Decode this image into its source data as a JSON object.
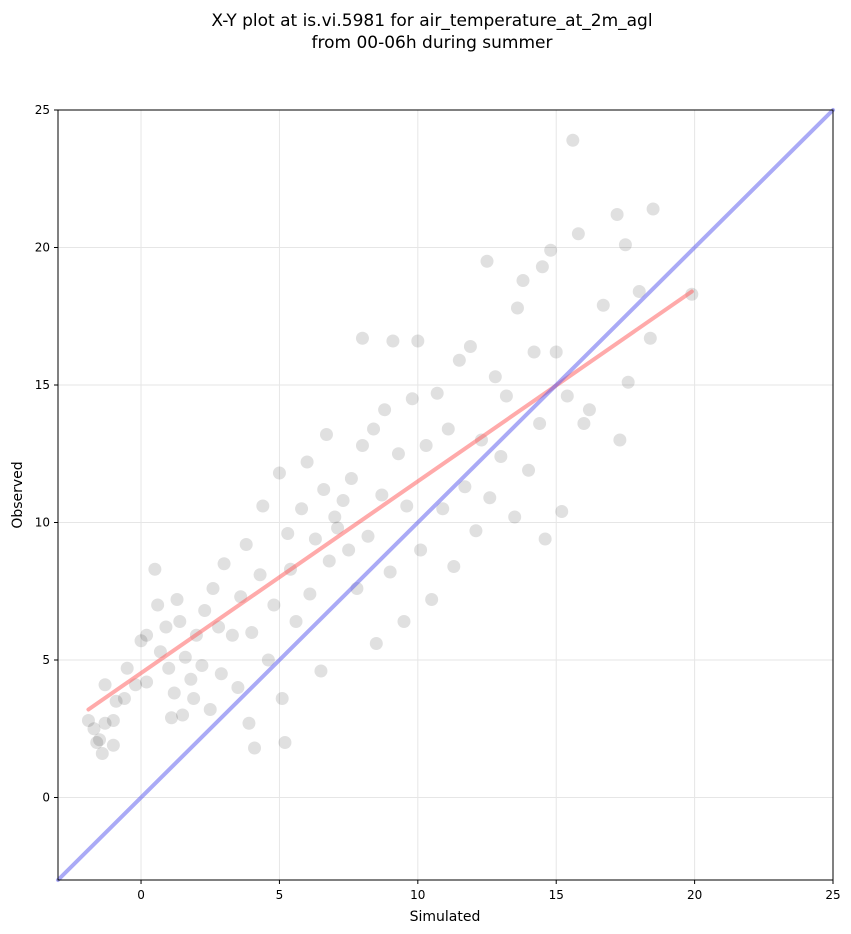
{
  "chart_data": {
    "type": "scatter",
    "title_lines": [
      "X-Y plot at is.vi.5981 for air_temperature_at_2m_agl",
      "from 00-06h during summer"
    ],
    "xlabel": "Simulated",
    "ylabel": "Observed",
    "xlim": [
      -3,
      25
    ],
    "ylim": [
      -3,
      25
    ],
    "xticks": [
      0,
      5,
      10,
      15,
      20,
      25
    ],
    "yticks": [
      0,
      5,
      10,
      15,
      20,
      25
    ],
    "grid": true,
    "point_color": "#000000",
    "point_alpha": 0.12,
    "series": [
      {
        "type": "scatter",
        "points": [
          [
            -1.9,
            2.8
          ],
          [
            -1.7,
            2.5
          ],
          [
            -1.5,
            2.1
          ],
          [
            -1.4,
            1.6
          ],
          [
            -1.6,
            2.0
          ],
          [
            -1.3,
            2.7
          ],
          [
            -1.3,
            4.1
          ],
          [
            -1.0,
            2.8
          ],
          [
            -1.0,
            1.9
          ],
          [
            -0.9,
            3.5
          ],
          [
            -0.6,
            3.6
          ],
          [
            -0.5,
            4.7
          ],
          [
            -0.2,
            4.1
          ],
          [
            0.0,
            5.7
          ],
          [
            0.2,
            5.9
          ],
          [
            0.2,
            4.2
          ],
          [
            0.5,
            8.3
          ],
          [
            0.6,
            7.0
          ],
          [
            0.7,
            5.3
          ],
          [
            0.9,
            6.2
          ],
          [
            1.0,
            4.7
          ],
          [
            1.1,
            2.9
          ],
          [
            1.2,
            3.8
          ],
          [
            1.3,
            7.2
          ],
          [
            1.4,
            6.4
          ],
          [
            1.5,
            3.0
          ],
          [
            1.6,
            5.1
          ],
          [
            1.8,
            4.3
          ],
          [
            1.9,
            3.6
          ],
          [
            2.0,
            5.9
          ],
          [
            2.2,
            4.8
          ],
          [
            2.3,
            6.8
          ],
          [
            2.5,
            3.2
          ],
          [
            2.6,
            7.6
          ],
          [
            2.8,
            6.2
          ],
          [
            2.9,
            4.5
          ],
          [
            3.0,
            8.5
          ],
          [
            3.3,
            5.9
          ],
          [
            3.5,
            4.0
          ],
          [
            3.6,
            7.3
          ],
          [
            3.8,
            9.2
          ],
          [
            3.9,
            2.7
          ],
          [
            4.0,
            6.0
          ],
          [
            4.1,
            1.8
          ],
          [
            4.3,
            8.1
          ],
          [
            4.4,
            10.6
          ],
          [
            4.6,
            5.0
          ],
          [
            4.8,
            7.0
          ],
          [
            5.0,
            11.8
          ],
          [
            5.1,
            3.6
          ],
          [
            5.2,
            2.0
          ],
          [
            5.3,
            9.6
          ],
          [
            5.4,
            8.3
          ],
          [
            5.6,
            6.4
          ],
          [
            5.8,
            10.5
          ],
          [
            6.0,
            12.2
          ],
          [
            6.1,
            7.4
          ],
          [
            6.3,
            9.4
          ],
          [
            6.5,
            4.6
          ],
          [
            6.6,
            11.2
          ],
          [
            6.7,
            13.2
          ],
          [
            6.8,
            8.6
          ],
          [
            7.0,
            10.2
          ],
          [
            7.1,
            9.8
          ],
          [
            7.3,
            10.8
          ],
          [
            7.5,
            9.0
          ],
          [
            7.6,
            11.6
          ],
          [
            7.8,
            7.6
          ],
          [
            8.0,
            12.8
          ],
          [
            8.0,
            16.7
          ],
          [
            8.2,
            9.5
          ],
          [
            8.4,
            13.4
          ],
          [
            8.5,
            5.6
          ],
          [
            8.7,
            11.0
          ],
          [
            8.8,
            14.1
          ],
          [
            9.0,
            8.2
          ],
          [
            9.1,
            16.6
          ],
          [
            9.3,
            12.5
          ],
          [
            9.5,
            6.4
          ],
          [
            9.6,
            10.6
          ],
          [
            9.8,
            14.5
          ],
          [
            10.0,
            16.6
          ],
          [
            10.1,
            9.0
          ],
          [
            10.3,
            12.8
          ],
          [
            10.5,
            7.2
          ],
          [
            10.7,
            14.7
          ],
          [
            10.9,
            10.5
          ],
          [
            11.1,
            13.4
          ],
          [
            11.3,
            8.4
          ],
          [
            11.5,
            15.9
          ],
          [
            11.7,
            11.3
          ],
          [
            11.9,
            16.4
          ],
          [
            12.1,
            9.7
          ],
          [
            12.3,
            13.0
          ],
          [
            12.5,
            19.5
          ],
          [
            12.6,
            10.9
          ],
          [
            12.8,
            15.3
          ],
          [
            13.0,
            12.4
          ],
          [
            13.2,
            14.6
          ],
          [
            13.5,
            10.2
          ],
          [
            13.6,
            17.8
          ],
          [
            13.8,
            18.8
          ],
          [
            14.0,
            11.9
          ],
          [
            14.2,
            16.2
          ],
          [
            14.4,
            13.6
          ],
          [
            14.5,
            19.3
          ],
          [
            14.6,
            9.4
          ],
          [
            14.8,
            19.9
          ],
          [
            15.0,
            16.2
          ],
          [
            15.2,
            10.4
          ],
          [
            15.4,
            14.6
          ],
          [
            15.6,
            23.9
          ],
          [
            15.8,
            20.5
          ],
          [
            16.0,
            13.6
          ],
          [
            16.2,
            14.1
          ],
          [
            16.7,
            17.9
          ],
          [
            17.2,
            21.2
          ],
          [
            17.3,
            13.0
          ],
          [
            17.5,
            20.1
          ],
          [
            17.6,
            15.1
          ],
          [
            18.0,
            18.4
          ],
          [
            18.4,
            16.7
          ],
          [
            18.5,
            21.4
          ],
          [
            19.9,
            18.3
          ]
        ]
      },
      {
        "type": "line",
        "name": "",
        "color": "#ff5555",
        "alpha": 0.5,
        "x": [
          -1.9,
          19.9
        ],
        "y": [
          3.2,
          18.4
        ]
      },
      {
        "type": "line",
        "name": "",
        "color": "#5555ee",
        "alpha": 0.5,
        "x": [
          -3,
          25
        ],
        "y": [
          -3,
          25
        ]
      }
    ]
  }
}
